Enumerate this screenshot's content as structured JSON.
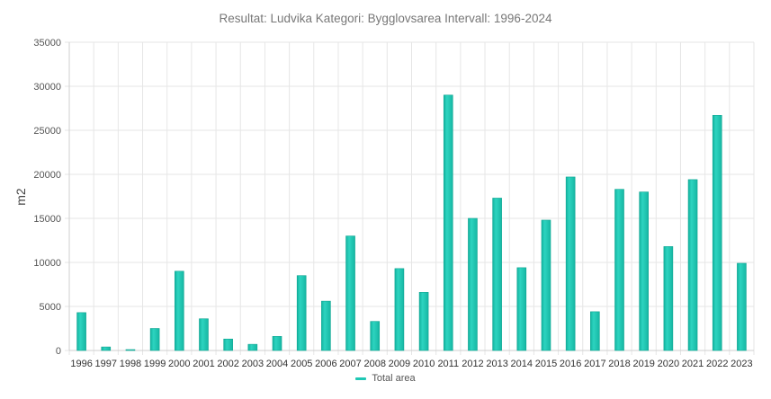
{
  "chart_data": {
    "type": "bar",
    "title": "Resultat: Ludvika Kategori: Bygglovsarea Intervall: 1996-2024",
    "xlabel": "",
    "ylabel": "m2",
    "ylim": [
      0,
      35000
    ],
    "y_ticks": [
      0,
      5000,
      10000,
      15000,
      20000,
      25000,
      30000,
      35000
    ],
    "grid": true,
    "legend_position": "bottom-center",
    "categories": [
      "1996",
      "1997",
      "1998",
      "1999",
      "2000",
      "2001",
      "2002",
      "2003",
      "2004",
      "2005",
      "2006",
      "2007",
      "2008",
      "2009",
      "2010",
      "2011",
      "2012",
      "2013",
      "2014",
      "2015",
      "2016",
      "2017",
      "2018",
      "2019",
      "2020",
      "2021",
      "2022",
      "2023"
    ],
    "series": [
      {
        "name": "Total area",
        "color": "#1fc8b4",
        "values": [
          4300,
          400,
          100,
          2500,
          9000,
          3600,
          1300,
          700,
          1600,
          8500,
          5600,
          13000,
          3300,
          9300,
          6600,
          29000,
          15000,
          17300,
          9400,
          14800,
          19700,
          4400,
          18300,
          18000,
          11800,
          19400,
          26700,
          9900
        ]
      }
    ]
  }
}
